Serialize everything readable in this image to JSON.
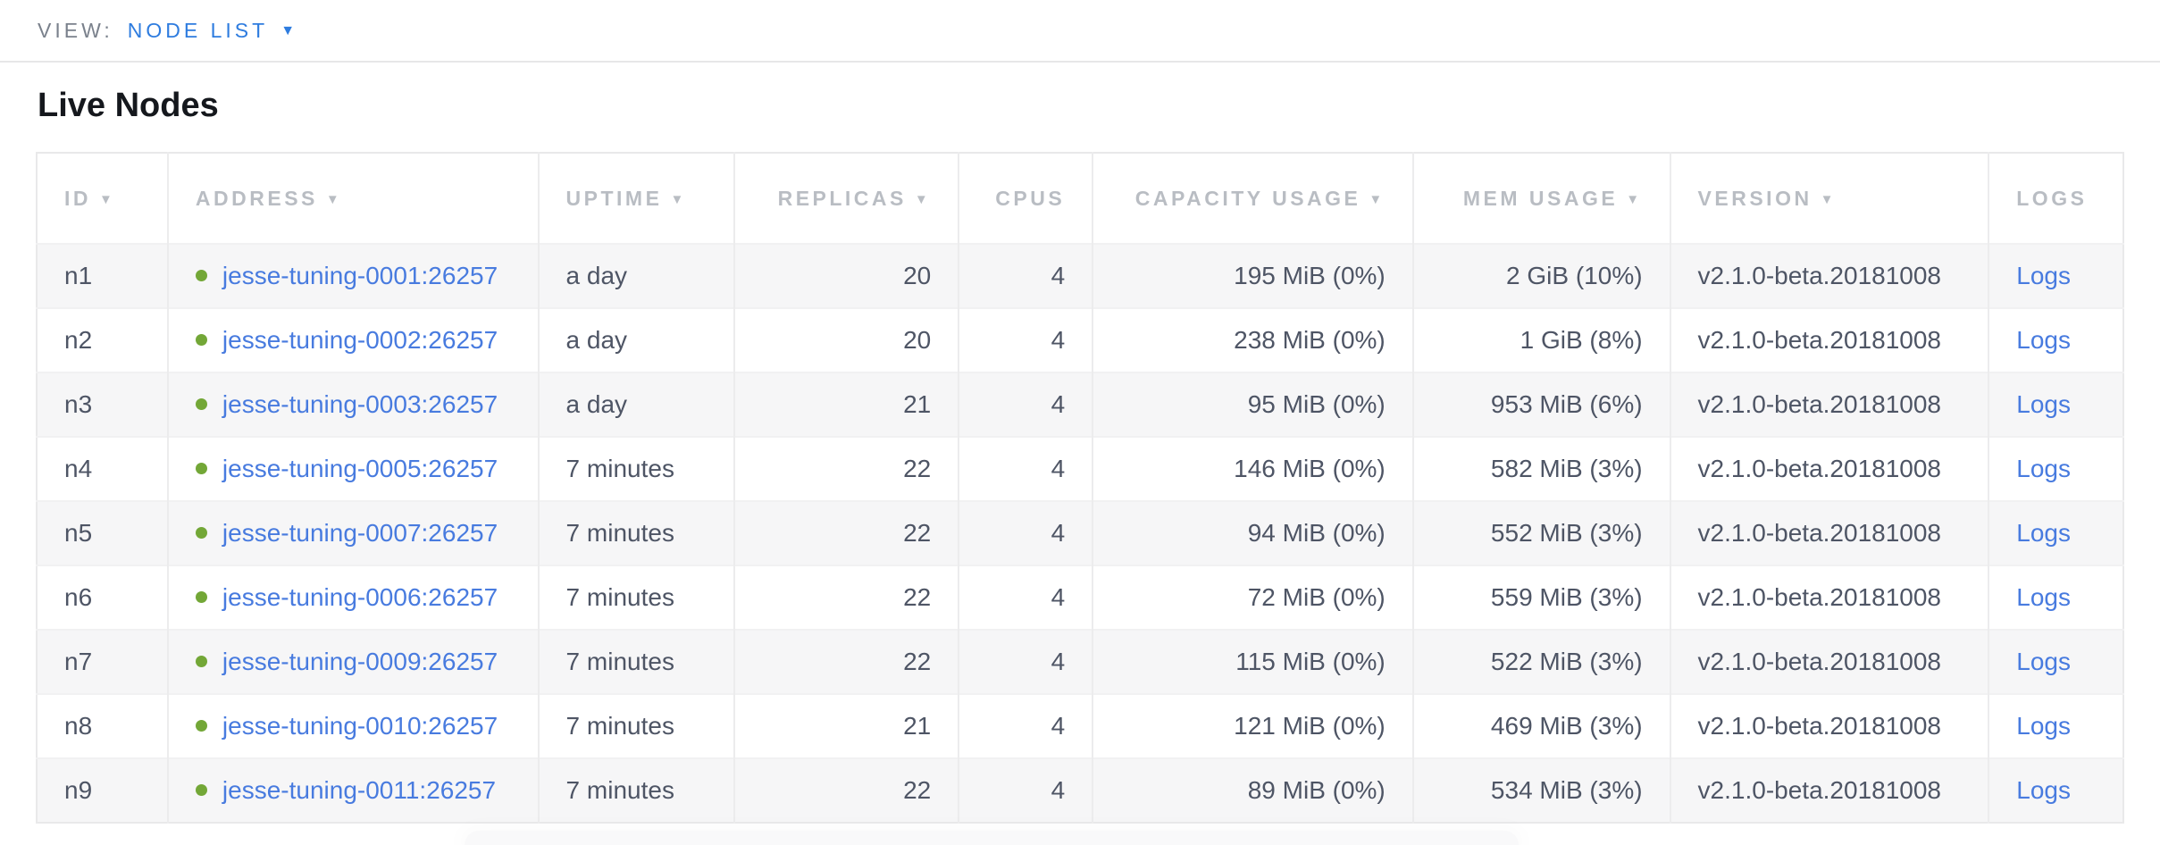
{
  "view_bar": {
    "label": "VIEW:",
    "selected_view": "NODE LIST",
    "caret_icon": "▼"
  },
  "page": {
    "title": "Live Nodes"
  },
  "table": {
    "sort_indicator": "▼",
    "columns": [
      {
        "key": "id",
        "label": "ID",
        "sortable": true,
        "align": "left"
      },
      {
        "key": "address",
        "label": "ADDRESS",
        "sortable": true,
        "align": "left"
      },
      {
        "key": "uptime",
        "label": "UPTIME",
        "sortable": true,
        "align": "left"
      },
      {
        "key": "replicas",
        "label": "REPLICAS",
        "sortable": true,
        "align": "right"
      },
      {
        "key": "cpus",
        "label": "CPUS",
        "sortable": false,
        "align": "right"
      },
      {
        "key": "capacity",
        "label": "CAPACITY USAGE",
        "sortable": true,
        "align": "right"
      },
      {
        "key": "mem",
        "label": "MEM USAGE",
        "sortable": true,
        "align": "right"
      },
      {
        "key": "version",
        "label": "VERSION",
        "sortable": true,
        "align": "left"
      },
      {
        "key": "logs",
        "label": "LOGS",
        "sortable": false,
        "align": "left"
      }
    ],
    "rows": [
      {
        "id": "n1",
        "address": "jesse-tuning-0001:26257",
        "status": "live",
        "uptime": "a day",
        "replicas": "20",
        "cpus": "4",
        "capacity": "195 MiB (0%)",
        "mem": "2 GiB (10%)",
        "version": "v2.1.0-beta.20181008",
        "logs": "Logs"
      },
      {
        "id": "n2",
        "address": "jesse-tuning-0002:26257",
        "status": "live",
        "uptime": "a day",
        "replicas": "20",
        "cpus": "4",
        "capacity": "238 MiB (0%)",
        "mem": "1 GiB (8%)",
        "version": "v2.1.0-beta.20181008",
        "logs": "Logs"
      },
      {
        "id": "n3",
        "address": "jesse-tuning-0003:26257",
        "status": "live",
        "uptime": "a day",
        "replicas": "21",
        "cpus": "4",
        "capacity": "95 MiB (0%)",
        "mem": "953 MiB (6%)",
        "version": "v2.1.0-beta.20181008",
        "logs": "Logs"
      },
      {
        "id": "n4",
        "address": "jesse-tuning-0005:26257",
        "status": "live",
        "uptime": "7 minutes",
        "replicas": "22",
        "cpus": "4",
        "capacity": "146 MiB (0%)",
        "mem": "582 MiB (3%)",
        "version": "v2.1.0-beta.20181008",
        "logs": "Logs"
      },
      {
        "id": "n5",
        "address": "jesse-tuning-0007:26257",
        "status": "live",
        "uptime": "7 minutes",
        "replicas": "22",
        "cpus": "4",
        "capacity": "94 MiB (0%)",
        "mem": "552 MiB (3%)",
        "version": "v2.1.0-beta.20181008",
        "logs": "Logs"
      },
      {
        "id": "n6",
        "address": "jesse-tuning-0006:26257",
        "status": "live",
        "uptime": "7 minutes",
        "replicas": "22",
        "cpus": "4",
        "capacity": "72 MiB (0%)",
        "mem": "559 MiB (3%)",
        "version": "v2.1.0-beta.20181008",
        "logs": "Logs"
      },
      {
        "id": "n7",
        "address": "jesse-tuning-0009:26257",
        "status": "live",
        "uptime": "7 minutes",
        "replicas": "22",
        "cpus": "4",
        "capacity": "115 MiB (0%)",
        "mem": "522 MiB (3%)",
        "version": "v2.1.0-beta.20181008",
        "logs": "Logs"
      },
      {
        "id": "n8",
        "address": "jesse-tuning-0010:26257",
        "status": "live",
        "uptime": "7 minutes",
        "replicas": "21",
        "cpus": "4",
        "capacity": "121 MiB (0%)",
        "mem": "469 MiB (3%)",
        "version": "v2.1.0-beta.20181008",
        "logs": "Logs"
      },
      {
        "id": "n9",
        "address": "jesse-tuning-0011:26257",
        "status": "live",
        "uptime": "7 minutes",
        "replicas": "22",
        "cpus": "4",
        "capacity": "89 MiB (0%)",
        "mem": "534 MiB (3%)",
        "version": "v2.1.0-beta.20181008",
        "logs": "Logs"
      }
    ]
  },
  "colors": {
    "view_link_blue": "#2e7cdf",
    "cell_link_blue": "#487bdf",
    "live_status_green": "#73a737",
    "header_text_grey": "#b9bdc3",
    "cell_text_slate": "#4e5565",
    "row_stripe_grey": "#f6f6f7",
    "border_grey": "#e9e9ea"
  }
}
